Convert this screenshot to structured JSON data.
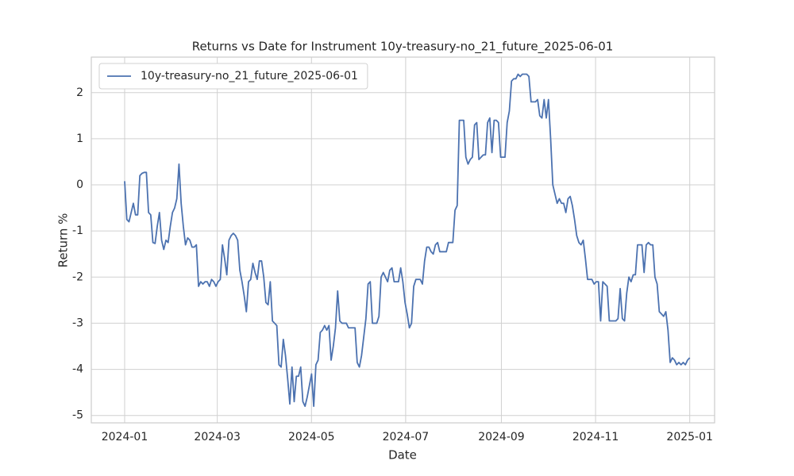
{
  "chart_data": {
    "type": "line",
    "title": "Returns vs Date for Instrument 10y-treasury-no_21_future_2025-06-01",
    "xlabel": "Date",
    "ylabel": "Return %",
    "xticks": [
      "2024-01",
      "2024-03",
      "2024-05",
      "2024-07",
      "2024-09",
      "2024-11",
      "2025-01"
    ],
    "ylim": [
      -5.16,
      2.77
    ],
    "yticks": [
      -5,
      -4,
      -3,
      -2,
      -1,
      0,
      1,
      2
    ],
    "grid": true,
    "legend": "upper left",
    "series": [
      {
        "name": "10y-treasury-no_21_future_2025-06-01",
        "color": "#4c72b0",
        "values": [
          0.08,
          -0.75,
          -0.8,
          -0.6,
          -0.4,
          -0.65,
          -0.65,
          0.2,
          0.25,
          0.27,
          0.27,
          -0.6,
          -0.65,
          -1.25,
          -1.27,
          -0.9,
          -0.6,
          -1.2,
          -1.4,
          -1.2,
          -1.25,
          -0.9,
          -0.6,
          -0.5,
          -0.3,
          0.45,
          -0.4,
          -0.9,
          -1.3,
          -1.15,
          -1.2,
          -1.35,
          -1.35,
          -1.3,
          -2.2,
          -2.1,
          -2.15,
          -2.1,
          -2.1,
          -2.2,
          -2.05,
          -2.1,
          -2.2,
          -2.1,
          -2.05,
          -1.3,
          -1.6,
          -1.95,
          -1.2,
          -1.1,
          -1.05,
          -1.1,
          -1.2,
          -1.85,
          -2.1,
          -2.4,
          -2.75,
          -2.1,
          -2.05,
          -1.7,
          -1.9,
          -2.05,
          -1.65,
          -1.65,
          -2.0,
          -2.55,
          -2.6,
          -2.1,
          -2.95,
          -3.0,
          -3.05,
          -3.9,
          -3.95,
          -3.35,
          -3.7,
          -4.2,
          -4.75,
          -3.95,
          -4.7,
          -4.15,
          -4.15,
          -3.95,
          -4.7,
          -4.8,
          -4.6,
          -4.35,
          -4.1,
          -4.8,
          -3.9,
          -3.8,
          -3.2,
          -3.15,
          -3.05,
          -3.15,
          -3.05,
          -3.8,
          -3.5,
          -3.1,
          -2.3,
          -2.95,
          -3.0,
          -3.0,
          -3.0,
          -3.1,
          -3.1,
          -3.1,
          -3.1,
          -3.85,
          -3.95,
          -3.7,
          -3.3,
          -2.9,
          -2.15,
          -2.1,
          -3.0,
          -3.0,
          -3.0,
          -2.85,
          -2.0,
          -1.9,
          -2.0,
          -2.1,
          -1.85,
          -1.8,
          -2.1,
          -2.1,
          -2.1,
          -1.8,
          -2.1,
          -2.55,
          -2.8,
          -3.1,
          -3.0,
          -2.2,
          -2.05,
          -2.05,
          -2.05,
          -2.15,
          -1.65,
          -1.35,
          -1.35,
          -1.45,
          -1.5,
          -1.3,
          -1.25,
          -1.45,
          -1.45,
          -1.45,
          -1.45,
          -1.25,
          -1.25,
          -1.25,
          -0.55,
          -0.45,
          1.4,
          1.4,
          1.4,
          0.6,
          0.45,
          0.55,
          0.6,
          1.3,
          1.35,
          0.55,
          0.6,
          0.65,
          0.65,
          1.35,
          1.45,
          0.7,
          1.4,
          1.4,
          1.35,
          0.6,
          0.6,
          0.6,
          1.35,
          1.6,
          2.25,
          2.3,
          2.3,
          2.4,
          2.35,
          2.4,
          2.4,
          2.4,
          2.35,
          1.8,
          1.8,
          1.8,
          1.85,
          1.5,
          1.45,
          1.85,
          1.45,
          1.85,
          1.0,
          0.0,
          -0.2,
          -0.4,
          -0.3,
          -0.4,
          -0.4,
          -0.6,
          -0.3,
          -0.25,
          -0.45,
          -0.75,
          -1.1,
          -1.25,
          -1.3,
          -1.2,
          -1.6,
          -2.05,
          -2.05,
          -2.05,
          -2.15,
          -2.1,
          -2.1,
          -2.95,
          -2.1,
          -2.15,
          -2.2,
          -2.95,
          -2.95,
          -2.95,
          -2.95,
          -2.9,
          -2.25,
          -2.9,
          -2.95,
          -2.35,
          -2.0,
          -2.1,
          -1.95,
          -1.95,
          -1.3,
          -1.3,
          -1.3,
          -1.9,
          -1.3,
          -1.25,
          -1.3,
          -1.3,
          -2.0,
          -2.15,
          -2.75,
          -2.8,
          -2.85,
          -2.75,
          -3.15,
          -3.85,
          -3.75,
          -3.8,
          -3.9,
          -3.85,
          -3.9,
          -3.85,
          -3.9,
          -3.8,
          -3.75
        ]
      }
    ]
  }
}
